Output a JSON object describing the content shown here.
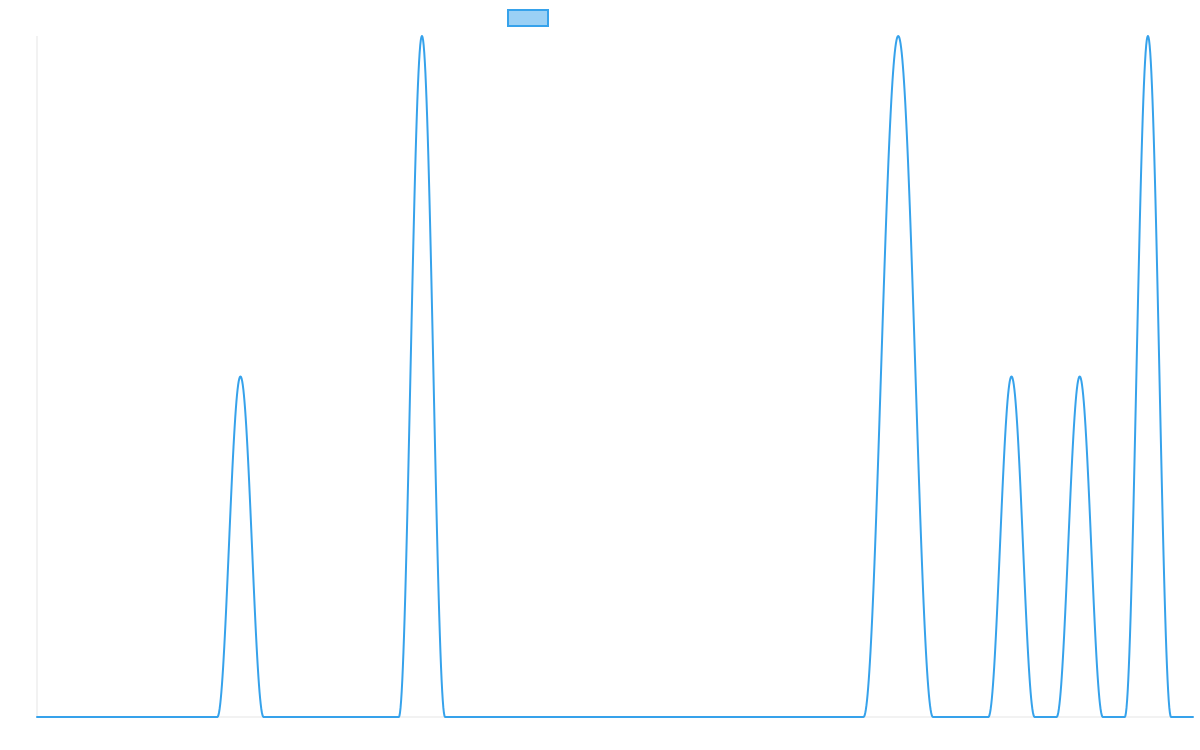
{
  "chart_data": {
    "type": "line",
    "title": "",
    "xlabel": "",
    "ylabel": "",
    "grid": false,
    "legend": "top-center",
    "x_range": [
      0,
      1000
    ],
    "ylim": [
      0,
      1
    ],
    "series": [
      {
        "color": "#36a2eb",
        "fill": "#9ad0f5",
        "peaks": [
          {
            "center": 176,
            "height": 0.5,
            "halfwidth": 20
          },
          {
            "center": 333,
            "height": 1.0,
            "halfwidth": 20
          },
          {
            "center": 745,
            "height": 1.0,
            "halfwidth": 30
          },
          {
            "center": 843,
            "height": 0.5,
            "halfwidth": 20
          },
          {
            "center": 902,
            "height": 0.5,
            "halfwidth": 20
          },
          {
            "center": 961,
            "height": 1.0,
            "halfwidth": 20
          }
        ]
      }
    ]
  }
}
